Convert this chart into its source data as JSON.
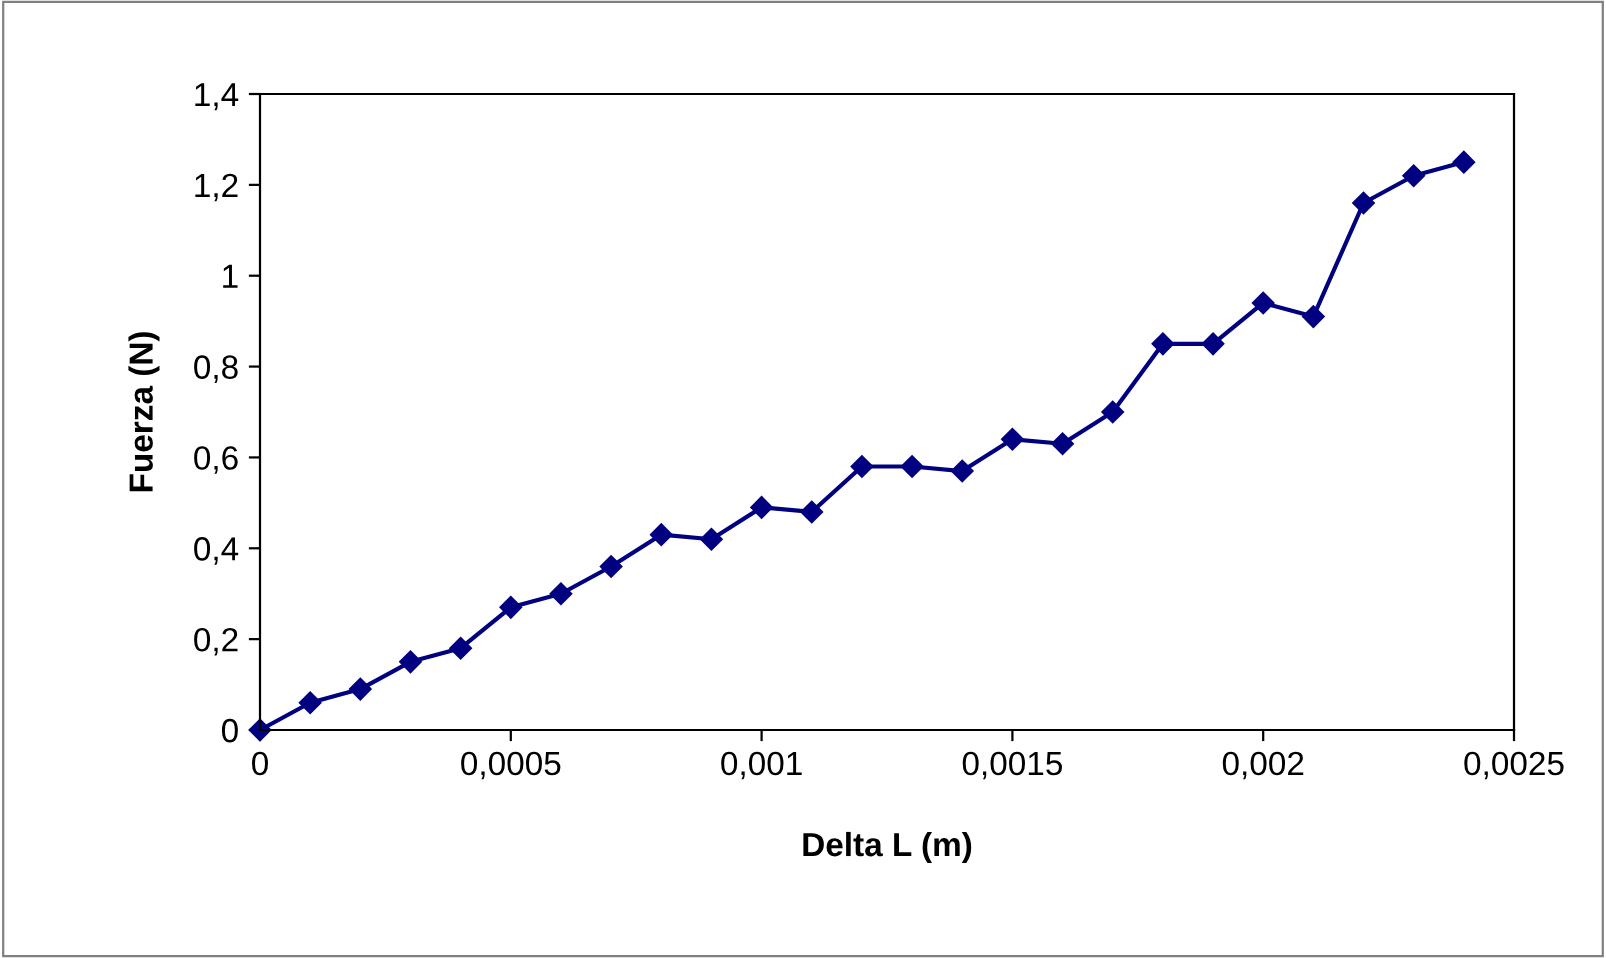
{
  "chart_data": {
    "type": "line",
    "xlabel": "Delta L (m)",
    "ylabel": "Fuerza (N)",
    "x": [
      0,
      0.0001,
      0.0002,
      0.0003,
      0.0004,
      0.0005,
      0.0006,
      0.0007,
      0.0008,
      0.0009,
      0.001,
      0.0011,
      0.0012,
      0.0013,
      0.0014,
      0.0015,
      0.0016,
      0.0017,
      0.0018,
      0.0019,
      0.002,
      0.0021,
      0.0022,
      0.0023,
      0.0024
    ],
    "series": [
      {
        "color": "#000080",
        "values": [
          0,
          0.06,
          0.09,
          0.15,
          0.18,
          0.27,
          0.3,
          0.36,
          0.43,
          0.42,
          0.49,
          0.48,
          0.58,
          0.58,
          0.57,
          0.64,
          0.63,
          0.7,
          0.85,
          0.85,
          0.94,
          0.91,
          1.16,
          1.22,
          1.25
        ]
      }
    ],
    "xlim": [
      0,
      0.0025
    ],
    "ylim": [
      0,
      1.4
    ],
    "xticks": [
      0,
      {
        "value": 0.0005,
        "label": "0,0005"
      },
      {
        "value": 0.001,
        "label": "0,001"
      },
      {
        "value": 0.0015,
        "label": "0,0015"
      },
      {
        "value": 0.002,
        "label": "0,002"
      },
      {
        "value": 0.0025,
        "label": "0,0025"
      }
    ],
    "yticks": [
      0,
      {
        "value": 0.2,
        "label": "0,2"
      },
      {
        "value": 0.4,
        "label": "0,4"
      },
      {
        "value": 0.6,
        "label": "0,6"
      },
      {
        "value": 0.8,
        "label": "0,8"
      },
      1,
      {
        "value": 1.2,
        "label": "1,2"
      },
      {
        "value": 1.4,
        "label": "1,4"
      }
    ],
    "grid": false,
    "legend": false,
    "marker": "diamond",
    "line_style": "solid"
  }
}
